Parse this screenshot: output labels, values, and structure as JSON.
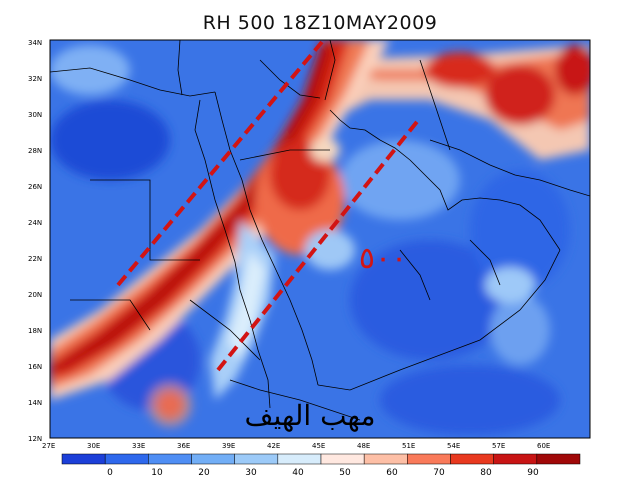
{
  "map": {
    "title": "RH 500 18Z10MAY2009",
    "lat_labels": [
      "34N",
      "32N",
      "30N",
      "28N",
      "26N",
      "24N",
      "22N",
      "20N",
      "18N",
      "16N",
      "14N",
      "12N"
    ],
    "lon_labels": [
      "27E",
      "30E",
      "33E",
      "36E",
      "39E",
      "42E",
      "45E",
      "48E",
      "51E",
      "54E",
      "57E",
      "60E"
    ],
    "colorbar_labels": [
      "0",
      "10",
      "20",
      "30",
      "40",
      "50",
      "60",
      "70",
      "80",
      "90"
    ],
    "colorbar_colors": [
      "#1c3fd8",
      "#2e68ec",
      "#4f8ef4",
      "#72aef6",
      "#9ccaf8",
      "#d7ecfb",
      "#ffe8e0",
      "#fdbfa6",
      "#f97a5a",
      "#e8391f",
      "#c81414",
      "#a00808"
    ],
    "annotation_number": "٥٠٠",
    "annotation_text": "مهب الهيف",
    "annotation_color": "#d21414",
    "dash_line_color": "#d21414"
  }
}
